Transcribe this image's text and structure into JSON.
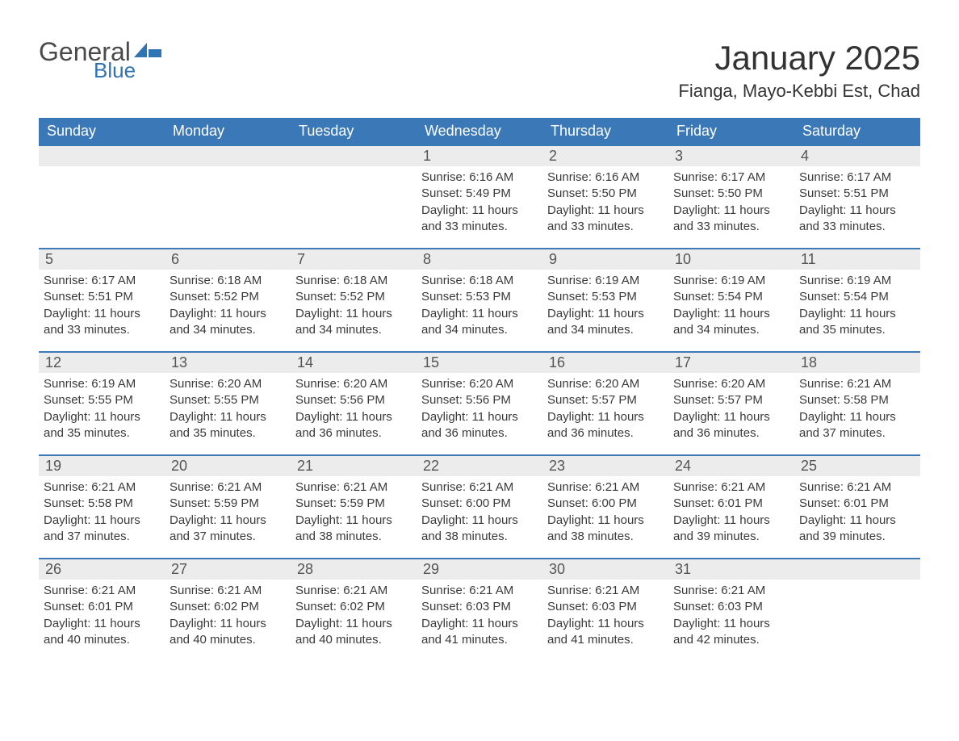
{
  "logo": {
    "text1": "General",
    "text2": "Blue",
    "flag_color": "#2f74b5"
  },
  "title": "January 2025",
  "location": "Fianga, Mayo-Kebbi Est, Chad",
  "colors": {
    "header_bg": "#3a78b8",
    "header_text": "#ffffff",
    "daynum_bg": "#ececec",
    "daynum_text": "#555555",
    "body_text": "#3a3a3a",
    "border": "#3a78b8",
    "page_bg": "#ffffff",
    "title_color": "#333333"
  },
  "weekdays": [
    "Sunday",
    "Monday",
    "Tuesday",
    "Wednesday",
    "Thursday",
    "Friday",
    "Saturday"
  ],
  "weeks": [
    [
      null,
      null,
      null,
      {
        "n": "1",
        "sunrise": "6:16 AM",
        "sunset": "5:49 PM",
        "daylight": "11 hours and 33 minutes."
      },
      {
        "n": "2",
        "sunrise": "6:16 AM",
        "sunset": "5:50 PM",
        "daylight": "11 hours and 33 minutes."
      },
      {
        "n": "3",
        "sunrise": "6:17 AM",
        "sunset": "5:50 PM",
        "daylight": "11 hours and 33 minutes."
      },
      {
        "n": "4",
        "sunrise": "6:17 AM",
        "sunset": "5:51 PM",
        "daylight": "11 hours and 33 minutes."
      }
    ],
    [
      {
        "n": "5",
        "sunrise": "6:17 AM",
        "sunset": "5:51 PM",
        "daylight": "11 hours and 33 minutes."
      },
      {
        "n": "6",
        "sunrise": "6:18 AM",
        "sunset": "5:52 PM",
        "daylight": "11 hours and 34 minutes."
      },
      {
        "n": "7",
        "sunrise": "6:18 AM",
        "sunset": "5:52 PM",
        "daylight": "11 hours and 34 minutes."
      },
      {
        "n": "8",
        "sunrise": "6:18 AM",
        "sunset": "5:53 PM",
        "daylight": "11 hours and 34 minutes."
      },
      {
        "n": "9",
        "sunrise": "6:19 AM",
        "sunset": "5:53 PM",
        "daylight": "11 hours and 34 minutes."
      },
      {
        "n": "10",
        "sunrise": "6:19 AM",
        "sunset": "5:54 PM",
        "daylight": "11 hours and 34 minutes."
      },
      {
        "n": "11",
        "sunrise": "6:19 AM",
        "sunset": "5:54 PM",
        "daylight": "11 hours and 35 minutes."
      }
    ],
    [
      {
        "n": "12",
        "sunrise": "6:19 AM",
        "sunset": "5:55 PM",
        "daylight": "11 hours and 35 minutes."
      },
      {
        "n": "13",
        "sunrise": "6:20 AM",
        "sunset": "5:55 PM",
        "daylight": "11 hours and 35 minutes."
      },
      {
        "n": "14",
        "sunrise": "6:20 AM",
        "sunset": "5:56 PM",
        "daylight": "11 hours and 36 minutes."
      },
      {
        "n": "15",
        "sunrise": "6:20 AM",
        "sunset": "5:56 PM",
        "daylight": "11 hours and 36 minutes."
      },
      {
        "n": "16",
        "sunrise": "6:20 AM",
        "sunset": "5:57 PM",
        "daylight": "11 hours and 36 minutes."
      },
      {
        "n": "17",
        "sunrise": "6:20 AM",
        "sunset": "5:57 PM",
        "daylight": "11 hours and 36 minutes."
      },
      {
        "n": "18",
        "sunrise": "6:21 AM",
        "sunset": "5:58 PM",
        "daylight": "11 hours and 37 minutes."
      }
    ],
    [
      {
        "n": "19",
        "sunrise": "6:21 AM",
        "sunset": "5:58 PM",
        "daylight": "11 hours and 37 minutes."
      },
      {
        "n": "20",
        "sunrise": "6:21 AM",
        "sunset": "5:59 PM",
        "daylight": "11 hours and 37 minutes."
      },
      {
        "n": "21",
        "sunrise": "6:21 AM",
        "sunset": "5:59 PM",
        "daylight": "11 hours and 38 minutes."
      },
      {
        "n": "22",
        "sunrise": "6:21 AM",
        "sunset": "6:00 PM",
        "daylight": "11 hours and 38 minutes."
      },
      {
        "n": "23",
        "sunrise": "6:21 AM",
        "sunset": "6:00 PM",
        "daylight": "11 hours and 38 minutes."
      },
      {
        "n": "24",
        "sunrise": "6:21 AM",
        "sunset": "6:01 PM",
        "daylight": "11 hours and 39 minutes."
      },
      {
        "n": "25",
        "sunrise": "6:21 AM",
        "sunset": "6:01 PM",
        "daylight": "11 hours and 39 minutes."
      }
    ],
    [
      {
        "n": "26",
        "sunrise": "6:21 AM",
        "sunset": "6:01 PM",
        "daylight": "11 hours and 40 minutes."
      },
      {
        "n": "27",
        "sunrise": "6:21 AM",
        "sunset": "6:02 PM",
        "daylight": "11 hours and 40 minutes."
      },
      {
        "n": "28",
        "sunrise": "6:21 AM",
        "sunset": "6:02 PM",
        "daylight": "11 hours and 40 minutes."
      },
      {
        "n": "29",
        "sunrise": "6:21 AM",
        "sunset": "6:03 PM",
        "daylight": "11 hours and 41 minutes."
      },
      {
        "n": "30",
        "sunrise": "6:21 AM",
        "sunset": "6:03 PM",
        "daylight": "11 hours and 41 minutes."
      },
      {
        "n": "31",
        "sunrise": "6:21 AM",
        "sunset": "6:03 PM",
        "daylight": "11 hours and 42 minutes."
      },
      null
    ]
  ],
  "labels": {
    "sunrise": "Sunrise:",
    "sunset": "Sunset:",
    "daylight": "Daylight:"
  }
}
